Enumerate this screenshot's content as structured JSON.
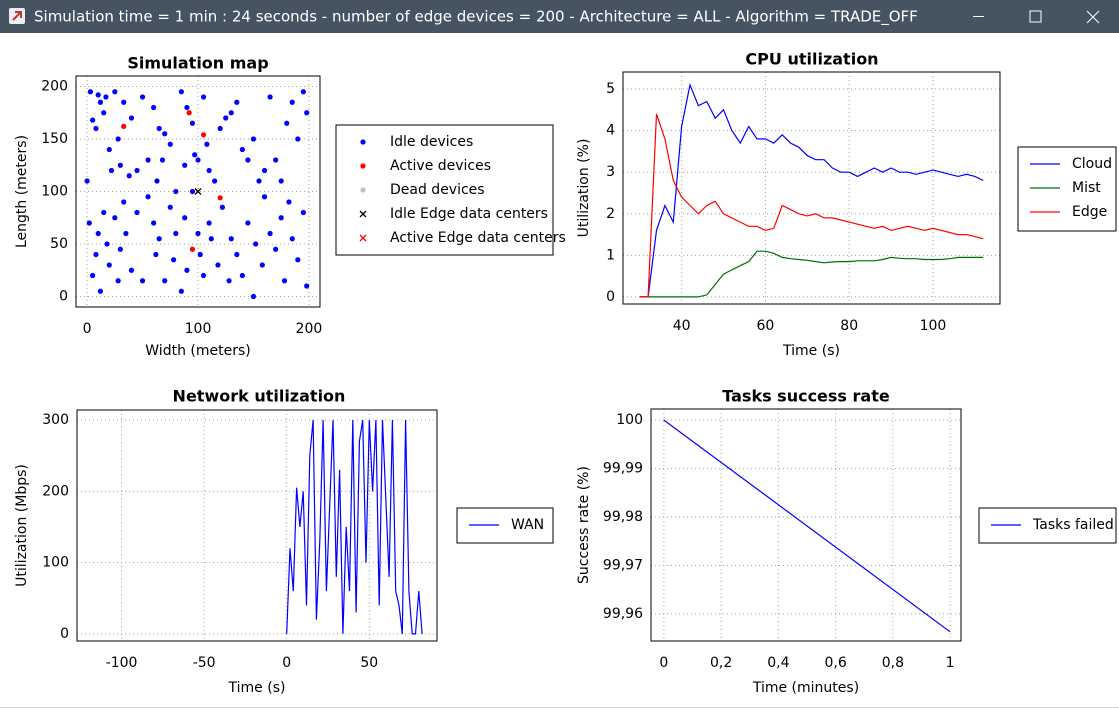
{
  "window": {
    "title": "Simulation time = 1 min : 24 seconds  -  number of edge devices = 200 -  Architecture = ALL -  Algorithm = TRADE_OFF"
  },
  "chart_data": [
    {
      "type": "scatter",
      "title": "Simulation map",
      "x_label": "Width (meters)",
      "y_label": "Length (meters)",
      "xlim": [
        -10,
        210
      ],
      "ylim": [
        -10,
        210
      ],
      "xticks": [
        0,
        100,
        200
      ],
      "yticks": [
        0,
        50,
        100,
        150,
        200
      ],
      "grid": true,
      "series": [
        {
          "name": "Idle devices",
          "color": "#0000ff",
          "marker": "dot",
          "x": [
            0,
            3,
            5,
            8,
            10,
            12,
            15,
            17,
            20,
            22,
            25,
            28,
            30,
            33,
            38,
            40,
            45,
            50,
            55,
            60,
            63,
            65,
            68,
            70,
            75,
            80,
            85,
            88,
            90,
            95,
            97,
            100,
            105,
            108,
            110,
            115,
            120,
            125,
            130,
            135,
            140,
            145,
            150,
            155,
            160,
            165,
            170,
            175,
            180,
            185,
            190,
            195,
            198,
            2,
            5,
            8,
            10,
            12,
            15,
            18,
            20,
            25,
            28,
            30,
            33,
            35,
            40,
            45,
            50,
            55,
            60,
            62,
            65,
            70,
            75,
            78,
            80,
            85,
            88,
            90,
            95,
            100,
            102,
            105,
            110,
            112,
            118,
            122,
            128,
            130,
            135,
            140,
            145,
            150,
            152,
            158,
            160,
            165,
            170,
            175,
            178,
            182,
            185,
            190,
            195,
            198
          ],
          "values": [
            110,
            195,
            168,
            160,
            192,
            185,
            175,
            190,
            140,
            120,
            195,
            150,
            125,
            185,
            115,
            170,
            120,
            190,
            130,
            180,
            110,
            160,
            130,
            155,
            145,
            100,
            195,
            125,
            180,
            165,
            135,
            130,
            190,
            145,
            120,
            110,
            160,
            170,
            175,
            185,
            140,
            130,
            150,
            110,
            120,
            190,
            130,
            110,
            165,
            185,
            150,
            195,
            175,
            70,
            20,
            40,
            60,
            5,
            80,
            50,
            30,
            75,
            15,
            45,
            90,
            60,
            25,
            80,
            15,
            95,
            70,
            40,
            55,
            15,
            85,
            35,
            60,
            5,
            75,
            25,
            100,
            60,
            40,
            20,
            70,
            55,
            30,
            85,
            15,
            55,
            40,
            20,
            70,
            0,
            50,
            30,
            95,
            60,
            45,
            75,
            15,
            90,
            55,
            35,
            80,
            10
          ]
        },
        {
          "name": "Active devices",
          "color": "#ff0000",
          "marker": "dot",
          "x": [
            33,
            92,
            105,
            120,
            95
          ],
          "values": [
            162,
            175,
            154,
            94,
            45
          ]
        },
        {
          "name": "Dead devices",
          "color": "#c0c0c0",
          "marker": "dot",
          "x": [],
          "values": []
        },
        {
          "name": "Idle Edge data centers",
          "color": "#000000",
          "marker": "x",
          "x": [
            100
          ],
          "values": [
            100
          ]
        },
        {
          "name": "Active Edge data centers",
          "color": "#ff0000",
          "marker": "x",
          "x": [],
          "values": []
        }
      ]
    },
    {
      "type": "line",
      "title": "CPU utilization",
      "x_label": "Time (s)",
      "y_label": "Utilization (%)",
      "xlim": [
        26,
        116
      ],
      "ylim": [
        -0.17,
        5.41
      ],
      "xticks": [
        40,
        60,
        80,
        100
      ],
      "yticks": [
        0,
        1,
        2,
        3,
        4,
        5
      ],
      "grid": true,
      "x": [
        30,
        32,
        34,
        36,
        38,
        40,
        42,
        44,
        46,
        48,
        50,
        52,
        54,
        56,
        58,
        60,
        62,
        64,
        66,
        68,
        70,
        72,
        74,
        76,
        78,
        80,
        82,
        84,
        86,
        88,
        90,
        92,
        94,
        96,
        98,
        100,
        102,
        104,
        106,
        108,
        110,
        112
      ],
      "series": [
        {
          "name": "Cloud",
          "color": "#0000ff",
          "values": [
            0,
            0,
            1.6,
            2.2,
            1.8,
            4.1,
            5.1,
            4.6,
            4.7,
            4.3,
            4.5,
            4.0,
            3.7,
            4.1,
            3.8,
            3.8,
            3.7,
            3.9,
            3.7,
            3.6,
            3.4,
            3.3,
            3.3,
            3.1,
            3.0,
            3.0,
            2.9,
            3.0,
            3.1,
            3.0,
            3.1,
            3.0,
            3.0,
            2.95,
            3.0,
            3.05,
            3.0,
            2.95,
            2.9,
            2.95,
            2.9,
            2.8
          ]
        },
        {
          "name": "Mist",
          "color": "#007000",
          "values": [
            0,
            0,
            0,
            0,
            0,
            0,
            0,
            0,
            0.05,
            0.3,
            0.55,
            0.65,
            0.75,
            0.85,
            1.1,
            1.1,
            1.05,
            0.95,
            0.92,
            0.9,
            0.88,
            0.85,
            0.82,
            0.84,
            0.85,
            0.85,
            0.87,
            0.87,
            0.87,
            0.9,
            0.95,
            0.93,
            0.92,
            0.92,
            0.9,
            0.9,
            0.9,
            0.92,
            0.95,
            0.95,
            0.95,
            0.95
          ]
        },
        {
          "name": "Edge",
          "color": "#ff0000",
          "values": [
            0,
            0,
            4.4,
            3.8,
            2.8,
            2.4,
            2.2,
            2.0,
            2.2,
            2.3,
            2.0,
            1.9,
            1.8,
            1.7,
            1.7,
            1.6,
            1.65,
            2.2,
            2.1,
            2.0,
            1.95,
            2.0,
            1.9,
            1.9,
            1.85,
            1.8,
            1.75,
            1.7,
            1.65,
            1.7,
            1.6,
            1.65,
            1.7,
            1.65,
            1.6,
            1.65,
            1.6,
            1.55,
            1.5,
            1.5,
            1.45,
            1.4
          ]
        }
      ]
    },
    {
      "type": "line",
      "title": "Network utilization",
      "x_label": "Time (s)",
      "y_label": "Utilization (Mbps)",
      "xlim": [
        -127,
        91
      ],
      "ylim": [
        -10,
        314
      ],
      "xticks": [
        -100,
        -50,
        0,
        50
      ],
      "yticks": [
        0,
        100,
        200,
        300
      ],
      "grid": true,
      "x": [
        0,
        2,
        4,
        6,
        8,
        10,
        12,
        14,
        16,
        18,
        20,
        22,
        24,
        26,
        28,
        30,
        32,
        34,
        36,
        38,
        40,
        42,
        44,
        46,
        48,
        50,
        52,
        54,
        56,
        58,
        60,
        62,
        64,
        66,
        68,
        70,
        72,
        74,
        76,
        78,
        80,
        82
      ],
      "series": [
        {
          "name": "WAN",
          "color": "#0000ff",
          "values": [
            0,
            120,
            60,
            205,
            150,
            200,
            40,
            250,
            300,
            20,
            130,
            300,
            60,
            180,
            300,
            80,
            230,
            0,
            150,
            60,
            300,
            30,
            270,
            300,
            100,
            300,
            200,
            300,
            40,
            300,
            190,
            80,
            300,
            60,
            40,
            0,
            300,
            60,
            0,
            0,
            60,
            0
          ]
        }
      ]
    },
    {
      "type": "line",
      "title": "Tasks success rate",
      "x_label": "Time (minutes)",
      "y_label": "Success rate (%)",
      "xlim": [
        -0.045,
        1.038
      ],
      "ylim": [
        99.9544,
        100.0023
      ],
      "xticks": [
        0,
        {
          "value": 0.2,
          "label": "0,2"
        },
        {
          "value": 0.4,
          "label": "0,4"
        },
        {
          "value": 0.6,
          "label": "0,6"
        },
        {
          "value": 0.8,
          "label": "0,8"
        },
        1
      ],
      "yticks": [
        {
          "value": 99.96,
          "label": "99,96"
        },
        {
          "value": 99.97,
          "label": "99,97"
        },
        {
          "value": 99.98,
          "label": "99,98"
        },
        {
          "value": 99.99,
          "label": "99,99"
        },
        100
      ],
      "grid": true,
      "x": [
        0,
        1
      ],
      "series": [
        {
          "name": "Tasks failed",
          "color": "#0000ff",
          "values": [
            100,
            99.9563
          ]
        }
      ]
    }
  ]
}
